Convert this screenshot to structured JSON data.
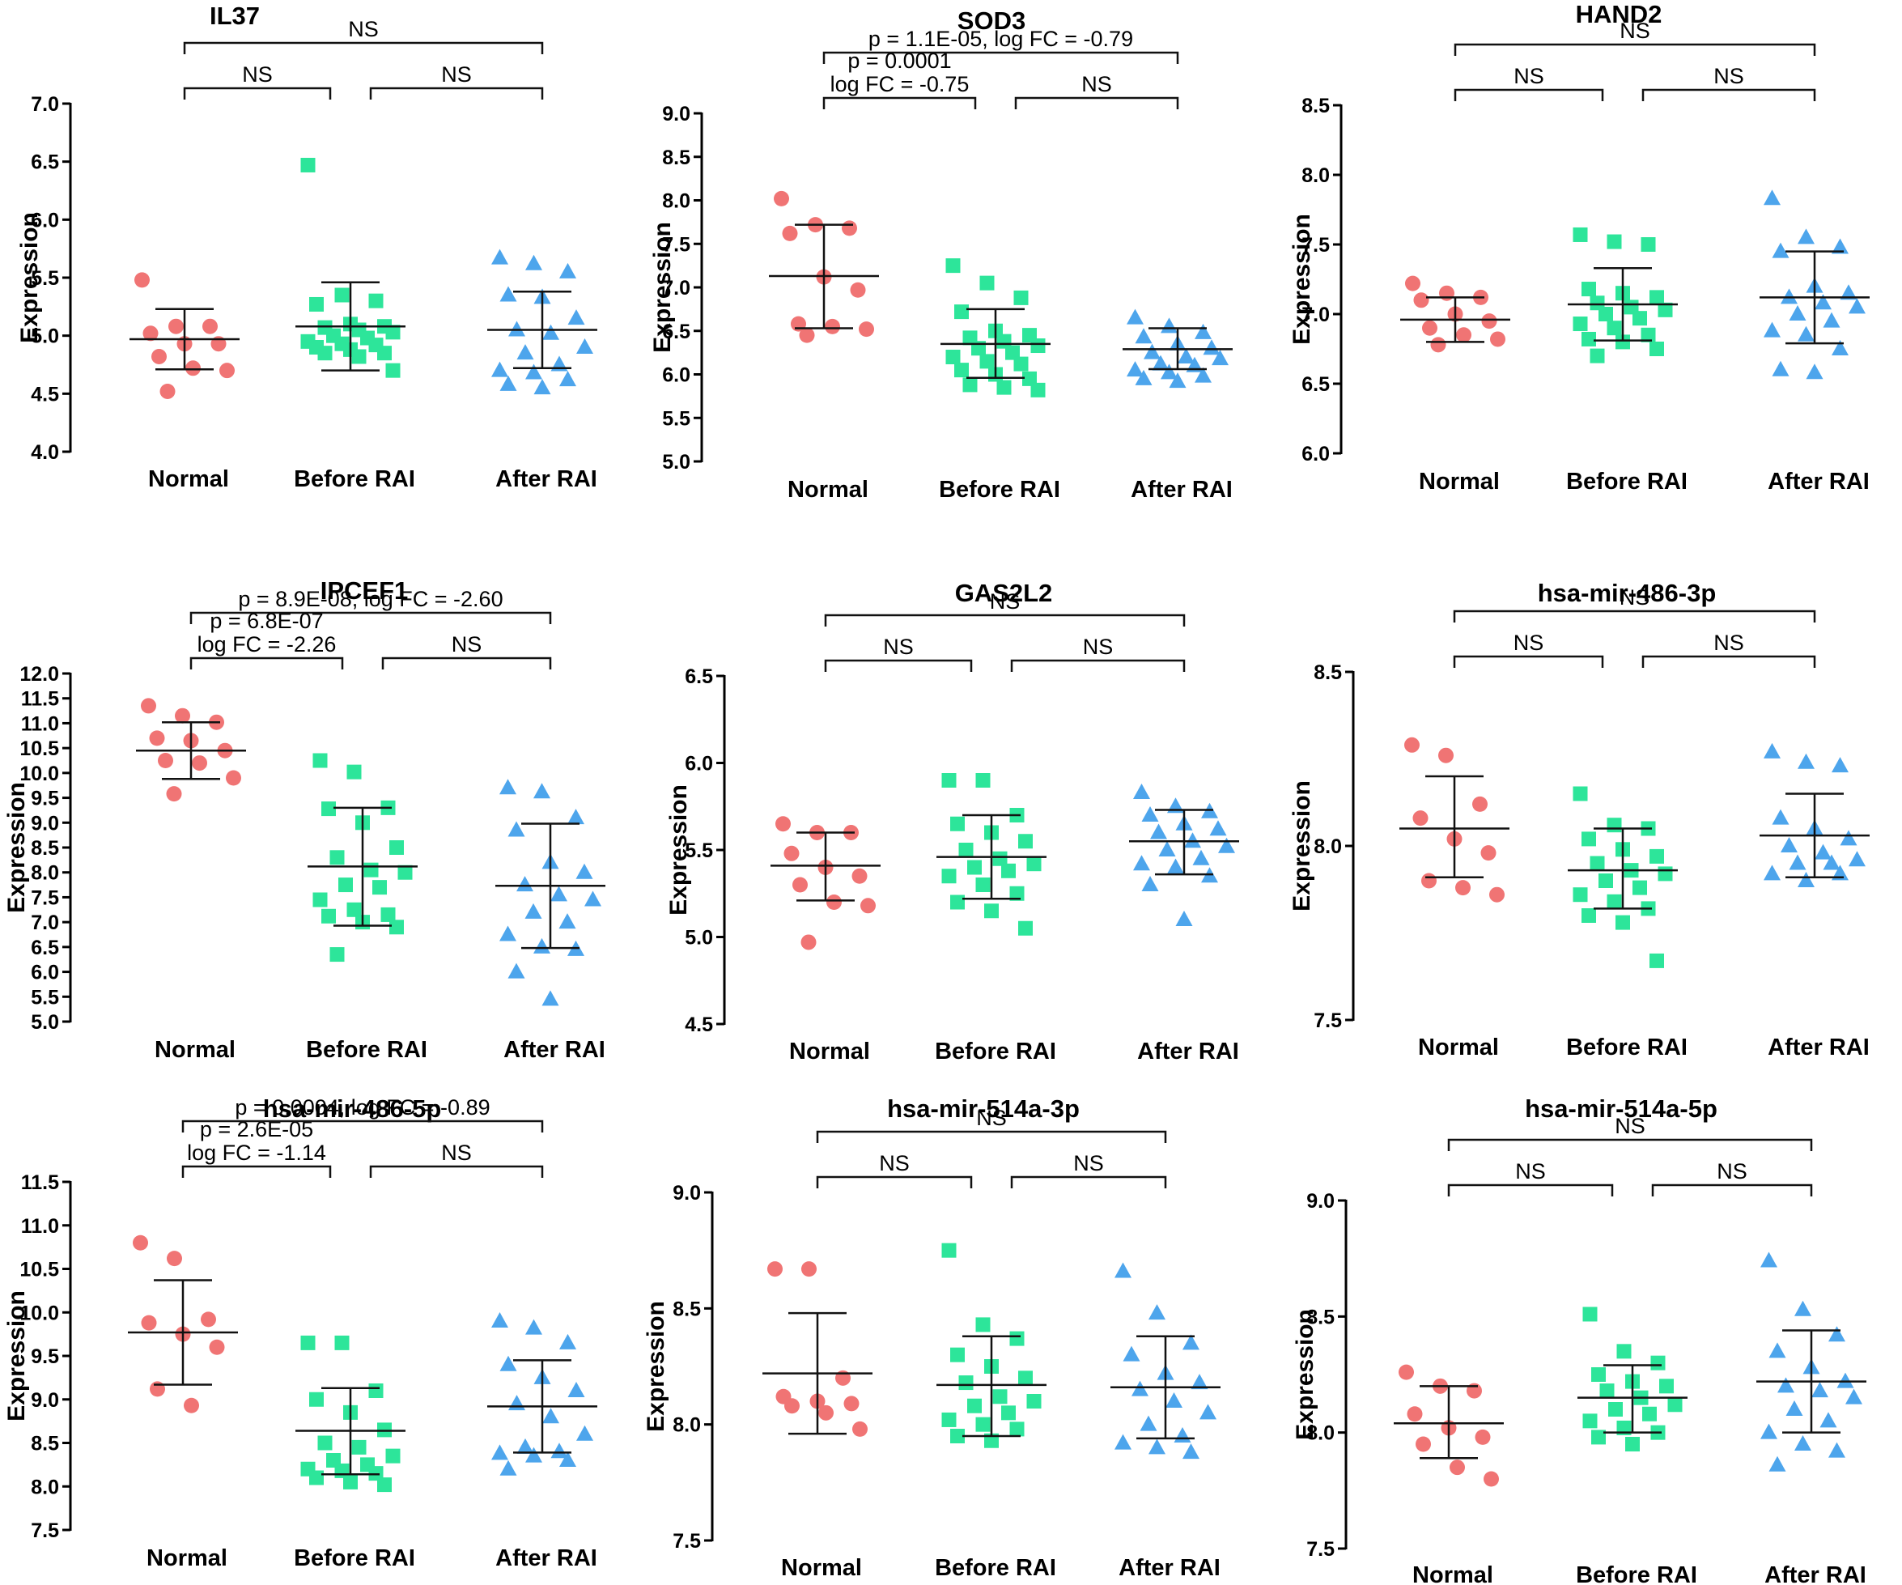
{
  "figure": {
    "description_label": "Expression dot plots by group"
  },
  "colors": {
    "Normal": "#f07474",
    "Before RAI": "#2de59a",
    "After RAI": "#4da5ec",
    "axis": "#000000"
  },
  "chart_data": [
    {
      "type": "scatter",
      "title": "IL37",
      "ylabel": "Expression",
      "categories": [
        "Normal",
        "Before RAI",
        "After RAI"
      ],
      "ylim": [
        4.0,
        7.0
      ],
      "yticks": [
        "4.0",
        "4.5",
        "5.0",
        "5.5",
        "6.0",
        "6.5",
        "7.0"
      ],
      "series": [
        {
          "name": "Normal",
          "marker": "circle",
          "values": [
            5.48,
            5.08,
            5.08,
            5.02,
            4.93,
            4.93,
            4.82,
            4.72,
            4.7,
            4.52
          ],
          "mean": 4.97,
          "sd_low": 4.71,
          "sd_high": 5.23
        },
        {
          "name": "Before RAI",
          "marker": "square",
          "values": [
            6.47,
            5.35,
            5.3,
            5.27,
            5.1,
            5.08,
            5.07,
            5.05,
            5.03,
            5.0,
            4.98,
            4.95,
            4.93,
            4.92,
            4.9,
            4.88,
            4.85,
            4.85,
            4.82,
            4.7
          ],
          "mean": 5.08,
          "sd_low": 4.7,
          "sd_high": 5.46
        },
        {
          "name": "After RAI",
          "marker": "triangle",
          "values": [
            5.67,
            5.62,
            5.55,
            5.35,
            5.33,
            5.15,
            5.05,
            5.02,
            4.9,
            4.85,
            4.75,
            4.7,
            4.68,
            4.62,
            4.58,
            4.55
          ],
          "mean": 5.05,
          "sd_low": 4.72,
          "sd_high": 5.38
        }
      ],
      "brackets": [
        {
          "from": 0,
          "to": 1,
          "level": 1,
          "label": "NS"
        },
        {
          "from": 1,
          "to": 2,
          "level": 1,
          "label": "NS"
        },
        {
          "from": 0,
          "to": 2,
          "level": 2,
          "label": "NS"
        }
      ]
    },
    {
      "type": "scatter",
      "title": "SOD3",
      "ylabel": "Expression",
      "categories": [
        "Normal",
        "Before RAI",
        "After RAI"
      ],
      "ylim": [
        5.0,
        9.0
      ],
      "yticks": [
        "5.0",
        "5.5",
        "6.0",
        "6.5",
        "7.0",
        "7.5",
        "8.0",
        "8.5",
        "9.0"
      ],
      "series": [
        {
          "name": "Normal",
          "marker": "circle",
          "values": [
            8.02,
            7.72,
            7.68,
            7.62,
            7.12,
            6.97,
            6.58,
            6.55,
            6.52,
            6.45
          ],
          "mean": 7.13,
          "sd_low": 6.53,
          "sd_high": 7.72
        },
        {
          "name": "Before RAI",
          "marker": "square",
          "values": [
            7.25,
            7.05,
            6.88,
            6.72,
            6.5,
            6.45,
            6.42,
            6.38,
            6.33,
            6.3,
            6.25,
            6.2,
            6.15,
            6.12,
            6.05,
            6.0,
            5.95,
            5.88,
            5.85,
            5.82
          ],
          "mean": 6.35,
          "sd_low": 5.96,
          "sd_high": 6.75
        },
        {
          "name": "After RAI",
          "marker": "triangle",
          "values": [
            6.65,
            6.55,
            6.48,
            6.43,
            6.35,
            6.3,
            6.25,
            6.2,
            6.18,
            6.12,
            6.1,
            6.05,
            6.02,
            5.98,
            5.95,
            5.92
          ],
          "mean": 6.29,
          "sd_low": 6.06,
          "sd_high": 6.53
        }
      ],
      "brackets": [
        {
          "from": 0,
          "to": 1,
          "level": 1,
          "label": "p = 0.0001\nlog FC = -0.75"
        },
        {
          "from": 1,
          "to": 2,
          "level": 1,
          "label": "NS"
        },
        {
          "from": 0,
          "to": 2,
          "level": 2,
          "label": "p = 1.1E-05, log FC = -0.79"
        }
      ]
    },
    {
      "type": "scatter",
      "title": "HAND2",
      "ylabel": "Expression",
      "categories": [
        "Normal",
        "Before RAI",
        "After RAI"
      ],
      "ylim": [
        6.0,
        8.5
      ],
      "yticks": [
        "6.0",
        "6.5",
        "7.0",
        "7.5",
        "8.0",
        "8.5"
      ],
      "series": [
        {
          "name": "Normal",
          "marker": "circle",
          "values": [
            7.22,
            7.15,
            7.12,
            7.1,
            7.0,
            6.95,
            6.9,
            6.85,
            6.82,
            6.78
          ],
          "mean": 6.96,
          "sd_low": 6.8,
          "sd_high": 7.12
        },
        {
          "name": "Before RAI",
          "marker": "square",
          "values": [
            7.57,
            7.52,
            7.5,
            7.18,
            7.15,
            7.12,
            7.08,
            7.05,
            7.03,
            7.0,
            6.97,
            6.93,
            6.9,
            6.85,
            6.82,
            6.8,
            6.75,
            6.7
          ],
          "mean": 7.07,
          "sd_low": 6.81,
          "sd_high": 7.33
        },
        {
          "name": "After RAI",
          "marker": "triangle",
          "values": [
            7.83,
            7.55,
            7.48,
            7.45,
            7.2,
            7.15,
            7.12,
            7.08,
            7.05,
            7.0,
            6.95,
            6.88,
            6.85,
            6.75,
            6.6,
            6.58
          ],
          "mean": 7.12,
          "sd_low": 6.79,
          "sd_high": 7.45
        }
      ],
      "brackets": [
        {
          "from": 0,
          "to": 1,
          "level": 1,
          "label": "NS"
        },
        {
          "from": 1,
          "to": 2,
          "level": 1,
          "label": "NS"
        },
        {
          "from": 0,
          "to": 2,
          "level": 2,
          "label": "NS"
        }
      ]
    },
    {
      "type": "scatter",
      "title": "IPCEF1",
      "ylabel": "Expression",
      "categories": [
        "Normal",
        "Before RAI",
        "After RAI"
      ],
      "ylim": [
        5.0,
        12.0
      ],
      "yticks": [
        "5.0",
        "5.5",
        "6.0",
        "6.5",
        "7.0",
        "7.5",
        "8.0",
        "8.5",
        "9.0",
        "9.5",
        "10.0",
        "10.5",
        "11.0",
        "11.5",
        "12.0"
      ],
      "series": [
        {
          "name": "Normal",
          "marker": "circle",
          "values": [
            11.35,
            11.15,
            11.02,
            10.7,
            10.65,
            10.45,
            10.25,
            10.2,
            9.9,
            9.58
          ],
          "mean": 10.45,
          "sd_low": 9.88,
          "sd_high": 11.02
        },
        {
          "name": "Before RAI",
          "marker": "square",
          "values": [
            10.25,
            10.02,
            9.3,
            9.28,
            9.0,
            8.5,
            8.3,
            8.05,
            8.0,
            7.75,
            7.7,
            7.45,
            7.25,
            7.15,
            7.12,
            7.0,
            6.9,
            6.35
          ],
          "mean": 8.12,
          "sd_low": 6.93,
          "sd_high": 9.3
        },
        {
          "name": "After RAI",
          "marker": "triangle",
          "values": [
            9.7,
            9.62,
            9.1,
            8.85,
            8.2,
            8.0,
            7.75,
            7.55,
            7.45,
            7.2,
            7.0,
            6.75,
            6.5,
            6.45,
            6.0,
            5.45
          ],
          "mean": 7.73,
          "sd_low": 6.48,
          "sd_high": 8.98
        }
      ],
      "brackets": [
        {
          "from": 0,
          "to": 1,
          "level": 1,
          "label": "p = 6.8E-07\nlog FC = -2.26"
        },
        {
          "from": 1,
          "to": 2,
          "level": 1,
          "label": "NS"
        },
        {
          "from": 0,
          "to": 2,
          "level": 2,
          "label": "p = 8.9E-08, log FC = -2.60"
        }
      ]
    },
    {
      "type": "scatter",
      "title": "GAS2L2",
      "ylabel": "Expression",
      "categories": [
        "Normal",
        "Before RAI",
        "After RAI"
      ],
      "ylim": [
        4.5,
        6.5
      ],
      "yticks": [
        "4.5",
        "5.0",
        "5.5",
        "6.0",
        "6.5"
      ],
      "series": [
        {
          "name": "Normal",
          "marker": "circle",
          "values": [
            5.65,
            5.6,
            5.6,
            5.48,
            5.4,
            5.35,
            5.3,
            5.2,
            5.18,
            4.97
          ],
          "mean": 5.41,
          "sd_low": 5.21,
          "sd_high": 5.6
        },
        {
          "name": "Before RAI",
          "marker": "square",
          "values": [
            5.9,
            5.9,
            5.7,
            5.65,
            5.6,
            5.55,
            5.5,
            5.45,
            5.42,
            5.4,
            5.38,
            5.35,
            5.3,
            5.25,
            5.2,
            5.15,
            5.05
          ],
          "mean": 5.46,
          "sd_low": 5.22,
          "sd_high": 5.7
        },
        {
          "name": "After RAI",
          "marker": "triangle",
          "values": [
            5.83,
            5.75,
            5.72,
            5.7,
            5.65,
            5.62,
            5.6,
            5.55,
            5.52,
            5.5,
            5.45,
            5.42,
            5.4,
            5.35,
            5.3,
            5.1
          ],
          "mean": 5.55,
          "sd_low": 5.36,
          "sd_high": 5.73
        }
      ],
      "brackets": [
        {
          "from": 0,
          "to": 1,
          "level": 1,
          "label": "NS"
        },
        {
          "from": 1,
          "to": 2,
          "level": 1,
          "label": "NS"
        },
        {
          "from": 0,
          "to": 2,
          "level": 2,
          "label": "NS"
        }
      ]
    },
    {
      "type": "scatter",
      "title": "hsa-mir-486-3p",
      "ylabel": "Expression",
      "categories": [
        "Normal",
        "Before RAI",
        "After RAI"
      ],
      "ylim": [
        7.5,
        8.5
      ],
      "yticks": [
        "7.5",
        "8.0",
        "8.5"
      ],
      "series": [
        {
          "name": "Normal",
          "marker": "circle",
          "values": [
            8.29,
            8.26,
            8.12,
            8.08,
            8.02,
            7.98,
            7.9,
            7.88,
            7.86
          ],
          "mean": 8.05,
          "sd_low": 7.91,
          "sd_high": 8.2
        },
        {
          "name": "Before RAI",
          "marker": "square",
          "values": [
            8.15,
            8.06,
            8.05,
            8.02,
            7.99,
            7.97,
            7.95,
            7.93,
            7.92,
            7.9,
            7.88,
            7.86,
            7.84,
            7.82,
            7.8,
            7.78,
            7.67
          ],
          "mean": 7.93,
          "sd_low": 7.82,
          "sd_high": 8.05
        },
        {
          "name": "After RAI",
          "marker": "triangle",
          "values": [
            8.27,
            8.24,
            8.23,
            8.08,
            8.05,
            8.02,
            8.0,
            7.98,
            7.96,
            7.95,
            7.95,
            7.92,
            7.9,
            7.92
          ],
          "mean": 8.03,
          "sd_low": 7.91,
          "sd_high": 8.15
        }
      ],
      "brackets": [
        {
          "from": 0,
          "to": 1,
          "level": 1,
          "label": "NS"
        },
        {
          "from": 1,
          "to": 2,
          "level": 1,
          "label": "NS"
        },
        {
          "from": 0,
          "to": 2,
          "level": 2,
          "label": "NS"
        }
      ]
    },
    {
      "type": "scatter",
      "title": "hsa-mir-486-5p",
      "ylabel": "Expression",
      "categories": [
        "Normal",
        "Before RAI",
        "After RAI"
      ],
      "ylim": [
        7.5,
        11.5
      ],
      "yticks": [
        "7.5",
        "8.0",
        "8.5",
        "9.0",
        "9.5",
        "10.0",
        "10.5",
        "11.0",
        "11.5"
      ],
      "series": [
        {
          "name": "Normal",
          "marker": "circle",
          "values": [
            10.8,
            10.62,
            9.92,
            9.88,
            9.75,
            9.6,
            9.12,
            8.93
          ],
          "mean": 9.77,
          "sd_low": 9.17,
          "sd_high": 10.37
        },
        {
          "name": "Before RAI",
          "marker": "square",
          "values": [
            9.65,
            9.65,
            9.1,
            9.0,
            8.85,
            8.65,
            8.5,
            8.45,
            8.35,
            8.3,
            8.25,
            8.2,
            8.18,
            8.15,
            8.1,
            8.05,
            8.02
          ],
          "mean": 8.64,
          "sd_low": 8.14,
          "sd_high": 9.13
        },
        {
          "name": "After RAI",
          "marker": "triangle",
          "values": [
            9.9,
            9.82,
            9.65,
            9.4,
            9.25,
            9.1,
            8.95,
            8.8,
            8.6,
            8.45,
            8.4,
            8.38,
            8.35,
            8.3,
            8.2
          ],
          "mean": 8.92,
          "sd_low": 8.39,
          "sd_high": 9.45
        }
      ],
      "brackets": [
        {
          "from": 0,
          "to": 1,
          "level": 1,
          "label": "p = 2.6E-05\nlog FC = -1.14"
        },
        {
          "from": 1,
          "to": 2,
          "level": 1,
          "label": "NS"
        },
        {
          "from": 0,
          "to": 2,
          "level": 2,
          "label": "p = 0.0004, log FC = -0.89"
        }
      ]
    },
    {
      "type": "scatter",
      "title": "hsa-mir-514a-3p",
      "ylabel": "Expression",
      "categories": [
        "Normal",
        "Before RAI",
        "After RAI"
      ],
      "ylim": [
        7.5,
        9.0
      ],
      "yticks": [
        "7.5",
        "8.0",
        "8.5",
        "9.0"
      ],
      "series": [
        {
          "name": "Normal",
          "marker": "circle",
          "values": [
            8.67,
            8.67,
            8.2,
            8.12,
            8.1,
            8.09,
            8.08,
            8.05,
            7.98
          ],
          "mean": 8.22,
          "sd_low": 7.96,
          "sd_high": 8.48
        },
        {
          "name": "Before RAI",
          "marker": "square",
          "values": [
            8.75,
            8.43,
            8.37,
            8.3,
            8.25,
            8.2,
            8.18,
            8.12,
            8.1,
            8.08,
            8.05,
            8.02,
            8.0,
            7.98,
            7.95,
            7.93
          ],
          "mean": 8.17,
          "sd_low": 7.95,
          "sd_high": 8.38
        },
        {
          "name": "After RAI",
          "marker": "triangle",
          "values": [
            8.66,
            8.48,
            8.35,
            8.3,
            8.22,
            8.18,
            8.15,
            8.1,
            8.05,
            8.0,
            7.95,
            7.92,
            7.9,
            7.88
          ],
          "mean": 8.16,
          "sd_low": 7.94,
          "sd_high": 8.38
        }
      ],
      "brackets": [
        {
          "from": 0,
          "to": 1,
          "level": 1,
          "label": "NS"
        },
        {
          "from": 1,
          "to": 2,
          "level": 1,
          "label": "NS"
        },
        {
          "from": 0,
          "to": 2,
          "level": 2,
          "label": "NS"
        }
      ]
    },
    {
      "type": "scatter",
      "title": "hsa-mir-514a-5p",
      "ylabel": "Expression",
      "categories": [
        "Normal",
        "Before RAI",
        "After RAI"
      ],
      "ylim": [
        7.5,
        9.0
      ],
      "yticks": [
        "7.5",
        "8.0",
        "8.5",
        "9.0"
      ],
      "series": [
        {
          "name": "Normal",
          "marker": "circle",
          "values": [
            8.26,
            8.2,
            8.18,
            8.08,
            8.02,
            7.98,
            7.95,
            7.85,
            7.8
          ],
          "mean": 8.04,
          "sd_low": 7.89,
          "sd_high": 8.2
        },
        {
          "name": "Before RAI",
          "marker": "square",
          "values": [
            8.51,
            8.35,
            8.3,
            8.25,
            8.22,
            8.2,
            8.18,
            8.15,
            8.12,
            8.1,
            8.08,
            8.05,
            8.02,
            8.0,
            7.98,
            7.95
          ],
          "mean": 8.15,
          "sd_low": 8.0,
          "sd_high": 8.29
        },
        {
          "name": "After RAI",
          "marker": "triangle",
          "values": [
            8.74,
            8.53,
            8.42,
            8.35,
            8.28,
            8.22,
            8.2,
            8.18,
            8.15,
            8.1,
            8.05,
            8.0,
            7.95,
            7.92,
            7.86
          ],
          "mean": 8.22,
          "sd_low": 8.0,
          "sd_high": 8.44
        }
      ],
      "brackets": [
        {
          "from": 0,
          "to": 1,
          "level": 1,
          "label": "NS"
        },
        {
          "from": 1,
          "to": 2,
          "level": 1,
          "label": "NS"
        },
        {
          "from": 0,
          "to": 2,
          "level": 2,
          "label": "NS"
        }
      ]
    }
  ]
}
